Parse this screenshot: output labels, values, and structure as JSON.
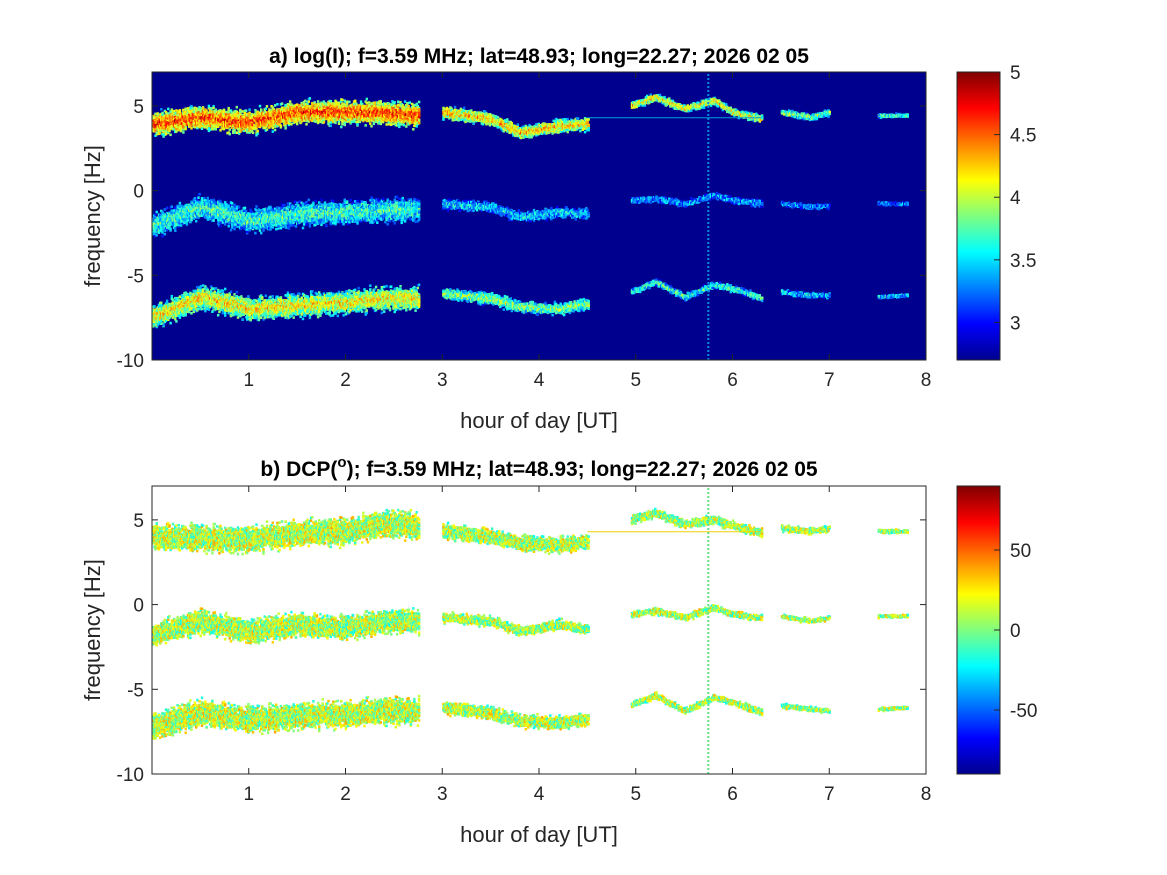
{
  "chart_data": [
    {
      "type": "heatmap",
      "title": "a) log(I); f=3.59 MHz;  lat=48.93; long=22.27; 2026 02 05",
      "xlabel": "hour of day [UT]",
      "ylabel": "frequency [Hz]",
      "xlim": [
        0,
        8
      ],
      "ylim": [
        -10,
        7
      ],
      "xticks": [
        "1",
        "2",
        "3",
        "4",
        "5",
        "6",
        "7",
        "8"
      ],
      "yticks": [
        "5",
        "0",
        "-5",
        "-10"
      ],
      "background": "#00008f",
      "colorbar": {
        "min": 2.7,
        "max": 5.0,
        "ticks": [
          "5",
          "4.5",
          "4",
          "3.5",
          "3"
        ]
      },
      "bands": [
        {
          "segments": [
            {
              "x0": 0.0,
              "x1": 2.75,
              "center": [
                [
                  0.0,
                  3.9
                ],
                [
                  0.5,
                  4.3
                ],
                [
                  1.0,
                  4.0
                ],
                [
                  1.5,
                  4.6
                ],
                [
                  2.0,
                  4.6
                ],
                [
                  2.4,
                  4.6
                ],
                [
                  2.75,
                  4.4
                ]
              ],
              "halfwidth": 0.9,
              "level": 4.6
            },
            {
              "x0": 3.0,
              "x1": 4.5,
              "center": [
                [
                  3.0,
                  4.6
                ],
                [
                  3.5,
                  4.2
                ],
                [
                  3.8,
                  3.4
                ],
                [
                  4.2,
                  3.8
                ],
                [
                  4.5,
                  3.9
                ]
              ],
              "halfwidth": 0.5,
              "level": 4.3
            },
            {
              "x0": 4.95,
              "x1": 6.3,
              "center": [
                [
                  4.95,
                  5.0
                ],
                [
                  5.2,
                  5.5
                ],
                [
                  5.5,
                  4.8
                ],
                [
                  5.8,
                  5.3
                ],
                [
                  6.0,
                  4.6
                ],
                [
                  6.3,
                  4.2
                ]
              ],
              "halfwidth": 0.3,
              "level": 4.2
            },
            {
              "x0": 6.5,
              "x1": 7.0,
              "center": [
                [
                  6.5,
                  4.6
                ],
                [
                  6.8,
                  4.3
                ],
                [
                  7.0,
                  4.6
                ]
              ],
              "halfwidth": 0.25,
              "level": 3.9
            },
            {
              "x0": 7.5,
              "x1": 7.8,
              "center": [
                [
                  7.5,
                  4.4
                ],
                [
                  7.8,
                  4.4
                ]
              ],
              "halfwidth": 0.15,
              "level": 3.7
            }
          ]
        },
        {
          "segments": [
            {
              "x0": 0.0,
              "x1": 2.75,
              "center": [
                [
                  0.0,
                  -2.1
                ],
                [
                  0.5,
                  -1.0
                ],
                [
                  1.0,
                  -1.8
                ],
                [
                  1.5,
                  -1.4
                ],
                [
                  2.0,
                  -1.3
                ],
                [
                  2.4,
                  -1.2
                ],
                [
                  2.75,
                  -1.1
                ]
              ],
              "halfwidth": 0.9,
              "level": 3.7
            },
            {
              "x0": 3.0,
              "x1": 4.5,
              "center": [
                [
                  3.0,
                  -0.8
                ],
                [
                  3.5,
                  -1.0
                ],
                [
                  3.8,
                  -1.6
                ],
                [
                  4.2,
                  -1.3
                ],
                [
                  4.5,
                  -1.4
                ]
              ],
              "halfwidth": 0.4,
              "level": 3.5
            },
            {
              "x0": 4.95,
              "x1": 6.3,
              "center": [
                [
                  4.95,
                  -0.6
                ],
                [
                  5.2,
                  -0.5
                ],
                [
                  5.5,
                  -0.8
                ],
                [
                  5.8,
                  -0.3
                ],
                [
                  6.0,
                  -0.6
                ],
                [
                  6.3,
                  -0.8
                ]
              ],
              "halfwidth": 0.25,
              "level": 3.4
            },
            {
              "x0": 6.5,
              "x1": 7.0,
              "center": [
                [
                  6.5,
                  -0.8
                ],
                [
                  6.8,
                  -1.0
                ],
                [
                  7.0,
                  -0.9
                ]
              ],
              "halfwidth": 0.2,
              "level": 3.3
            },
            {
              "x0": 7.5,
              "x1": 7.8,
              "center": [
                [
                  7.5,
                  -0.8
                ],
                [
                  7.8,
                  -0.8
                ]
              ],
              "halfwidth": 0.12,
              "level": 3.3
            }
          ]
        },
        {
          "segments": [
            {
              "x0": 0.0,
              "x1": 2.75,
              "center": [
                [
                  0.0,
                  -7.5
                ],
                [
                  0.5,
                  -6.3
                ],
                [
                  1.0,
                  -7.0
                ],
                [
                  1.5,
                  -6.8
                ],
                [
                  2.0,
                  -6.6
                ],
                [
                  2.4,
                  -6.4
                ],
                [
                  2.75,
                  -6.4
                ]
              ],
              "halfwidth": 0.9,
              "level": 4.2
            },
            {
              "x0": 3.0,
              "x1": 4.5,
              "center": [
                [
                  3.0,
                  -6.1
                ],
                [
                  3.5,
                  -6.4
                ],
                [
                  3.8,
                  -6.9
                ],
                [
                  4.2,
                  -7.0
                ],
                [
                  4.5,
                  -6.7
                ]
              ],
              "halfwidth": 0.45,
              "level": 3.9
            },
            {
              "x0": 4.95,
              "x1": 6.3,
              "center": [
                [
                  4.95,
                  -6.0
                ],
                [
                  5.2,
                  -5.4
                ],
                [
                  5.5,
                  -6.3
                ],
                [
                  5.8,
                  -5.6
                ],
                [
                  6.0,
                  -5.8
                ],
                [
                  6.3,
                  -6.4
                ]
              ],
              "halfwidth": 0.25,
              "level": 3.7
            },
            {
              "x0": 6.5,
              "x1": 7.0,
              "center": [
                [
                  6.5,
                  -6.0
                ],
                [
                  6.8,
                  -6.2
                ],
                [
                  7.0,
                  -6.2
                ]
              ],
              "halfwidth": 0.2,
              "level": 3.5
            },
            {
              "x0": 7.5,
              "x1": 7.8,
              "center": [
                [
                  7.5,
                  -6.3
                ],
                [
                  7.8,
                  -6.2
                ]
              ],
              "halfwidth": 0.12,
              "level": 3.5
            }
          ]
        }
      ],
      "features": [
        {
          "type": "hline",
          "x0": 4.5,
          "x1": 6.3,
          "y": 4.3,
          "color": "#00a0d8"
        },
        {
          "type": "vline",
          "x": 5.75,
          "y0": -10,
          "y1": 7,
          "color": "#0090e0"
        }
      ]
    },
    {
      "type": "heatmap",
      "title": "b) DCP(",
      "title_superscript": "o",
      "title_suffix": "); f=3.59 MHz;  lat=48.93; long=22.27; 2026 02 05",
      "xlabel": "hour of day [UT]",
      "ylabel": "frequency [Hz]",
      "xlim": [
        0,
        8
      ],
      "ylim": [
        -10,
        7
      ],
      "xticks": [
        "1",
        "2",
        "3",
        "4",
        "5",
        "6",
        "7",
        "8"
      ],
      "yticks": [
        "5",
        "0",
        "-5",
        "-10"
      ],
      "background": "#ffffff",
      "colorbar": {
        "min": -90,
        "max": 90,
        "ticks": [
          "50",
          "0",
          "-50"
        ]
      },
      "bands": [
        {
          "segments": [
            {
              "x0": 0.0,
              "x1": 2.75,
              "center": [
                [
                  0.0,
                  4.0
                ],
                [
                  0.5,
                  3.9
                ],
                [
                  1.0,
                  3.8
                ],
                [
                  1.5,
                  4.2
                ],
                [
                  2.0,
                  4.3
                ],
                [
                  2.4,
                  4.8
                ],
                [
                  2.75,
                  4.6
                ]
              ],
              "halfwidth": 1.0,
              "level": 10
            },
            {
              "x0": 3.0,
              "x1": 4.5,
              "center": [
                [
                  3.0,
                  4.3
                ],
                [
                  3.5,
                  4.0
                ],
                [
                  3.8,
                  3.6
                ],
                [
                  4.2,
                  3.5
                ],
                [
                  4.5,
                  3.7
                ]
              ],
              "halfwidth": 0.6,
              "level": 8
            },
            {
              "x0": 4.95,
              "x1": 6.3,
              "center": [
                [
                  4.95,
                  5.0
                ],
                [
                  5.2,
                  5.4
                ],
                [
                  5.5,
                  4.7
                ],
                [
                  5.8,
                  5.0
                ],
                [
                  6.0,
                  4.6
                ],
                [
                  6.3,
                  4.2
                ]
              ],
              "halfwidth": 0.35,
              "level": 6
            },
            {
              "x0": 6.5,
              "x1": 7.0,
              "center": [
                [
                  6.5,
                  4.5
                ],
                [
                  6.8,
                  4.3
                ],
                [
                  7.0,
                  4.5
                ]
              ],
              "halfwidth": 0.25,
              "level": 6
            },
            {
              "x0": 7.5,
              "x1": 7.8,
              "center": [
                [
                  7.5,
                  4.3
                ],
                [
                  7.8,
                  4.3
                ]
              ],
              "halfwidth": 0.15,
              "level": 6
            }
          ]
        },
        {
          "segments": [
            {
              "x0": 0.0,
              "x1": 2.75,
              "center": [
                [
                  0.0,
                  -1.8
                ],
                [
                  0.5,
                  -1.0
                ],
                [
                  1.0,
                  -1.6
                ],
                [
                  1.5,
                  -1.2
                ],
                [
                  2.0,
                  -1.4
                ],
                [
                  2.4,
                  -1.0
                ],
                [
                  2.75,
                  -1.0
                ]
              ],
              "halfwidth": 0.9,
              "level": 8
            },
            {
              "x0": 3.0,
              "x1": 4.5,
              "center": [
                [
                  3.0,
                  -0.8
                ],
                [
                  3.5,
                  -1.0
                ],
                [
                  3.8,
                  -1.6
                ],
                [
                  4.2,
                  -1.2
                ],
                [
                  4.5,
                  -1.5
                ]
              ],
              "halfwidth": 0.4,
              "level": 6
            },
            {
              "x0": 4.95,
              "x1": 6.3,
              "center": [
                [
                  4.95,
                  -0.6
                ],
                [
                  5.2,
                  -0.4
                ],
                [
                  5.5,
                  -0.8
                ],
                [
                  5.8,
                  -0.2
                ],
                [
                  6.0,
                  -0.6
                ],
                [
                  6.3,
                  -0.8
                ]
              ],
              "halfwidth": 0.25,
              "level": 6
            },
            {
              "x0": 6.5,
              "x1": 7.0,
              "center": [
                [
                  6.5,
                  -0.7
                ],
                [
                  6.8,
                  -1.0
                ],
                [
                  7.0,
                  -0.8
                ]
              ],
              "halfwidth": 0.2,
              "level": 6
            },
            {
              "x0": 7.5,
              "x1": 7.8,
              "center": [
                [
                  7.5,
                  -0.7
                ],
                [
                  7.8,
                  -0.7
                ]
              ],
              "halfwidth": 0.12,
              "level": 6
            }
          ]
        },
        {
          "segments": [
            {
              "x0": 0.0,
              "x1": 2.75,
              "center": [
                [
                  0.0,
                  -7.2
                ],
                [
                  0.5,
                  -6.4
                ],
                [
                  1.0,
                  -6.8
                ],
                [
                  1.5,
                  -6.6
                ],
                [
                  2.0,
                  -6.5
                ],
                [
                  2.4,
                  -6.3
                ],
                [
                  2.75,
                  -6.3
                ]
              ],
              "halfwidth": 1.0,
              "level": 10
            },
            {
              "x0": 3.0,
              "x1": 4.5,
              "center": [
                [
                  3.0,
                  -6.1
                ],
                [
                  3.5,
                  -6.4
                ],
                [
                  3.8,
                  -6.9
                ],
                [
                  4.2,
                  -7.0
                ],
                [
                  4.5,
                  -6.8
                ]
              ],
              "halfwidth": 0.5,
              "level": 8
            },
            {
              "x0": 4.95,
              "x1": 6.3,
              "center": [
                [
                  4.95,
                  -5.9
                ],
                [
                  5.2,
                  -5.4
                ],
                [
                  5.5,
                  -6.3
                ],
                [
                  5.8,
                  -5.5
                ],
                [
                  6.0,
                  -5.8
                ],
                [
                  6.3,
                  -6.4
                ]
              ],
              "halfwidth": 0.25,
              "level": 6
            },
            {
              "x0": 6.5,
              "x1": 7.0,
              "center": [
                [
                  6.5,
                  -6.0
                ],
                [
                  6.8,
                  -6.2
                ],
                [
                  7.0,
                  -6.3
                ]
              ],
              "halfwidth": 0.2,
              "level": 6
            },
            {
              "x0": 7.5,
              "x1": 7.8,
              "center": [
                [
                  7.5,
                  -6.2
                ],
                [
                  7.8,
                  -6.1
                ]
              ],
              "halfwidth": 0.12,
              "level": 6
            }
          ]
        }
      ],
      "features": [
        {
          "type": "hline",
          "x0": 4.5,
          "x1": 6.3,
          "y": 4.3,
          "color": "#f0d000"
        },
        {
          "type": "vline",
          "x": 5.75,
          "y0": -10,
          "y1": 7,
          "color": "#60e080"
        }
      ]
    }
  ]
}
